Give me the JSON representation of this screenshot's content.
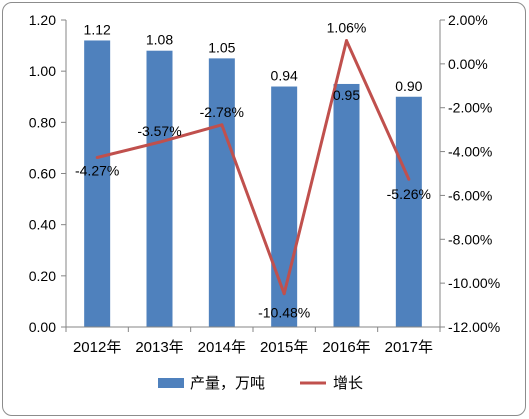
{
  "chart_data": {
    "type": "bar",
    "categories": [
      "2012年",
      "2013年",
      "2014年",
      "2015年",
      "2016年",
      "2017年"
    ],
    "series": [
      {
        "name": "产量，万吨",
        "type": "bar",
        "axis": "left",
        "values": [
          1.12,
          1.08,
          1.05,
          0.94,
          0.95,
          0.9
        ],
        "labels": [
          "1.12",
          "1.08",
          "1.05",
          "0.94",
          "0.95",
          "0.90"
        ],
        "color": "#4f81bd"
      },
      {
        "name": "增长",
        "type": "line",
        "axis": "right",
        "values": [
          -4.27,
          -3.57,
          -2.78,
          -10.48,
          1.06,
          -5.26
        ],
        "labels": [
          "-4.27%",
          "-3.57%",
          "-2.78%",
          "-10.48%",
          "1.06%",
          "-5.26%"
        ],
        "color": "#c0504d"
      }
    ],
    "y_left": {
      "ylim": [
        0,
        1.2
      ],
      "ticks": [
        "0.00",
        "0.20",
        "0.40",
        "0.60",
        "0.80",
        "1.00",
        "1.20"
      ]
    },
    "y_right": {
      "ylim": [
        -12,
        2
      ],
      "ticks": [
        "-12.00%",
        "-10.00%",
        "-8.00%",
        "-6.00%",
        "-4.00%",
        "-2.00%",
        "0.00%",
        "2.00%"
      ]
    },
    "grid": false,
    "legend": "bottom"
  }
}
